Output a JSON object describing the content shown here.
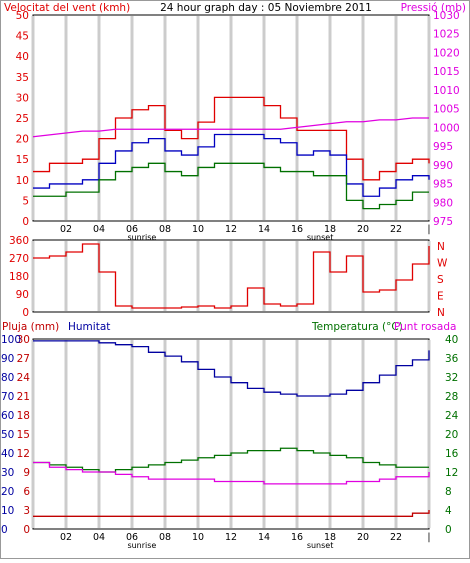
{
  "header": {
    "left_label": "Velocitat del vent (kmh)",
    "center_title": "24 hour graph day : 05 Noviembre 2011",
    "right_label": "Pressió (mb)"
  },
  "colors": {
    "gust": "#e00000",
    "speed": "#0000c0",
    "avg": "#007000",
    "pressure": "#e000e0",
    "direction": "#e00000",
    "humidity": "#0000a0",
    "rain": "#c00000",
    "temperature": "#007000",
    "dewpoint": "#e000e0",
    "grid": "#cccccc"
  },
  "x_axis": {
    "hours": [
      "02",
      "04",
      "06",
      "08",
      "10",
      "12",
      "14",
      "16",
      "18",
      "20",
      "22"
    ],
    "end_marker": "|",
    "sunrise_label": "sunrise",
    "sunset_label": "sunset"
  },
  "chart_data": [
    {
      "type": "line",
      "name": "wind",
      "title": "24 hour graph day : 05 Noviembre 2011",
      "ylabel_left": "Velocitat del vent (kmh)",
      "ylabel_right": "Pressió (mb)",
      "ylim_left": [
        0,
        50
      ],
      "ylim_right": [
        975,
        1030
      ],
      "yticks_left": [
        0,
        5,
        10,
        15,
        20,
        25,
        30,
        35,
        40,
        45,
        50
      ],
      "yticks_right": [
        975,
        980,
        985,
        990,
        995,
        1000,
        1005,
        1010,
        1015,
        1020,
        1025,
        1030
      ],
      "x": [
        0,
        1,
        2,
        3,
        4,
        5,
        6,
        7,
        8,
        9,
        10,
        11,
        12,
        13,
        14,
        15,
        16,
        17,
        18,
        19,
        20,
        21,
        22,
        23,
        24
      ],
      "series": [
        {
          "name": "gust",
          "axis": "left",
          "values": [
            12,
            14,
            14,
            15,
            20,
            25,
            27,
            28,
            22,
            20,
            24,
            30,
            30,
            30,
            28,
            25,
            22,
            22,
            22,
            15,
            10,
            12,
            14,
            15,
            14
          ]
        },
        {
          "name": "speed",
          "axis": "left",
          "values": [
            8,
            9,
            9,
            10,
            14,
            17,
            19,
            20,
            17,
            16,
            18,
            21,
            21,
            21,
            20,
            19,
            16,
            17,
            16,
            9,
            6,
            8,
            10,
            11,
            10
          ]
        },
        {
          "name": "avg",
          "axis": "left",
          "values": [
            6,
            6,
            7,
            7,
            10,
            12,
            13,
            14,
            12,
            11,
            13,
            14,
            14,
            14,
            13,
            12,
            12,
            11,
            11,
            5,
            3,
            4,
            5,
            7,
            7
          ]
        },
        {
          "name": "pressure",
          "axis": "right",
          "values": [
            997.5,
            998,
            998.5,
            999,
            999,
            999.5,
            999.5,
            999.5,
            999.5,
            999.5,
            999.5,
            999.5,
            999.5,
            999.5,
            999.5,
            999.5,
            1000,
            1000.5,
            1001,
            1001.5,
            1001.5,
            1002,
            1002,
            1002.5,
            1002.5
          ]
        }
      ]
    },
    {
      "type": "line",
      "name": "direction",
      "ylim": [
        0,
        360
      ],
      "yticks": [
        0,
        90,
        180,
        270,
        360
      ],
      "compass_labels": [
        "N",
        "W",
        "S",
        "E",
        "N"
      ],
      "x": [
        0,
        1,
        2,
        3,
        4,
        5,
        6,
        7,
        8,
        9,
        10,
        11,
        12,
        13,
        14,
        15,
        16,
        17,
        18,
        19,
        20,
        21,
        22,
        23,
        24
      ],
      "series": [
        {
          "name": "direction",
          "values": [
            270,
            280,
            300,
            340,
            200,
            30,
            20,
            20,
            20,
            25,
            30,
            20,
            30,
            120,
            40,
            30,
            40,
            300,
            200,
            280,
            100,
            110,
            160,
            240,
            330
          ]
        }
      ]
    },
    {
      "type": "line",
      "name": "humidity-temperature",
      "ylabel_left_rain": "Pluja (mm)",
      "ylabel_left_humidity": "Humitat",
      "ylabel_right": "Temperatura (°C)",
      "ylabel_right_2": "Punt rosada",
      "ylim_rain": [
        0,
        30
      ],
      "yticks_rain": [
        0,
        3,
        6,
        9,
        12,
        15,
        18,
        21,
        24,
        27,
        30
      ],
      "ylim_humidity": [
        0,
        100
      ],
      "yticks_humidity": [
        0,
        10,
        20,
        30,
        40,
        50,
        60,
        70,
        80,
        90,
        100
      ],
      "ylim_temp": [
        0,
        40
      ],
      "yticks_temp": [
        0,
        4,
        8,
        12,
        16,
        20,
        24,
        28,
        32,
        36,
        40
      ],
      "x": [
        0,
        1,
        2,
        3,
        4,
        5,
        6,
        7,
        8,
        9,
        10,
        11,
        12,
        13,
        14,
        15,
        16,
        17,
        18,
        19,
        20,
        21,
        22,
        23,
        24
      ],
      "series": [
        {
          "name": "humidity",
          "axis": "humidity",
          "values": [
            99,
            99,
            99,
            99,
            98,
            97,
            96,
            93,
            91,
            88,
            84,
            80,
            77,
            74,
            72,
            71,
            70,
            70,
            71,
            73,
            77,
            81,
            86,
            89,
            94
          ]
        },
        {
          "name": "rain",
          "axis": "rain",
          "values": [
            2,
            2,
            2,
            2,
            2,
            2,
            2,
            2,
            2,
            2,
            2,
            2,
            2,
            2,
            2,
            2,
            2,
            2,
            2,
            2,
            2,
            2,
            2,
            2.5,
            3
          ]
        },
        {
          "name": "temperature",
          "axis": "temp",
          "values": [
            14,
            13.5,
            13,
            12.5,
            12,
            12.5,
            13,
            13.5,
            14,
            14.5,
            15,
            15.5,
            16,
            16.5,
            16.5,
            17,
            16.5,
            16,
            15.5,
            15,
            14,
            13.5,
            13,
            13,
            13
          ]
        },
        {
          "name": "dewpoint",
          "axis": "temp",
          "values": [
            14,
            13,
            12.5,
            12,
            12,
            11.5,
            11,
            10.5,
            10.5,
            10.5,
            10.5,
            10,
            10,
            10,
            9.5,
            9.5,
            9.5,
            9.5,
            9.5,
            10,
            10,
            10.5,
            11,
            11,
            12
          ]
        }
      ]
    }
  ]
}
